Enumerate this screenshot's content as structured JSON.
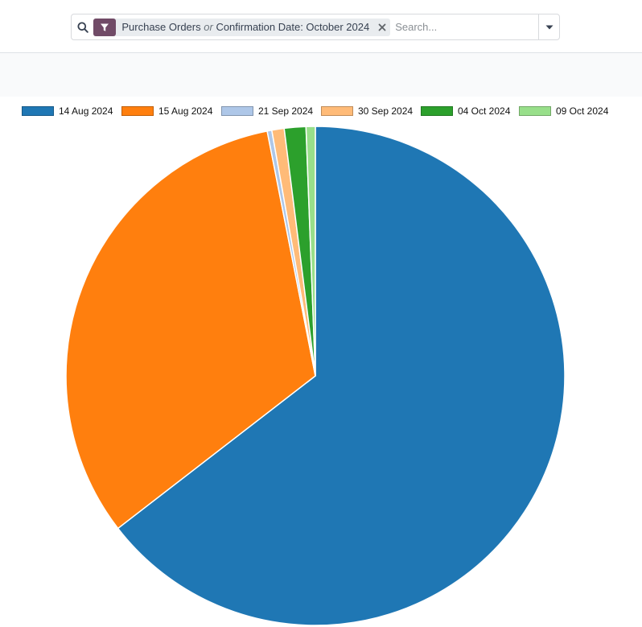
{
  "search": {
    "facet_part1": "Purchase Orders",
    "facet_or": "or",
    "facet_part2": "Confirmation Date: October 2024",
    "placeholder": "Search..."
  },
  "colors": {
    "facet_icon_bg": "#714b67"
  },
  "icons": {
    "search": "search-icon",
    "facet": "filter-icon",
    "remove": "close-icon",
    "toggle": "caret-down-icon"
  },
  "chart_data": {
    "type": "pie",
    "categories": [
      "14 Aug 2024",
      "15 Aug 2024",
      "21 Sep 2024",
      "30 Sep 2024",
      "04 Oct 2024",
      "09 Oct 2024"
    ],
    "values": [
      64.6,
      32.4,
      0.3,
      0.8,
      1.4,
      0.6
    ],
    "colors": [
      "#1f77b4",
      "#ff7f0e",
      "#aec7e8",
      "#ffbb78",
      "#2ca02c",
      "#98df8a"
    ],
    "legend_position": "top"
  }
}
